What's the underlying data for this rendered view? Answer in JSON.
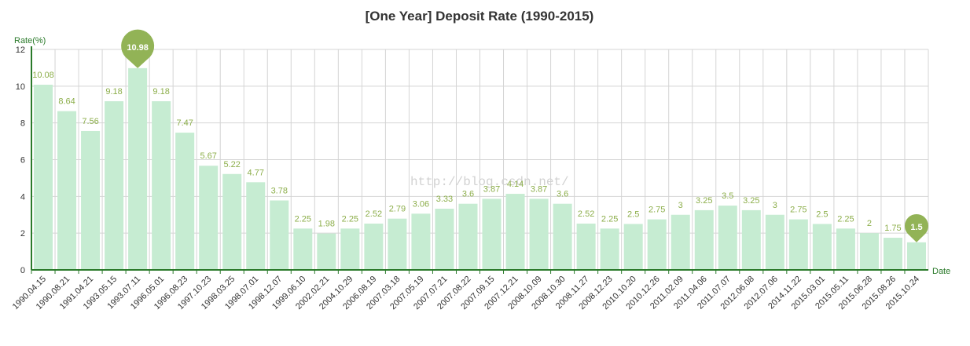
{
  "chart_data": {
    "type": "bar",
    "title": "[One Year] Deposit Rate (1990-2015)",
    "ylabel": "Rate(%)",
    "xlabel": "Date",
    "ylim": [
      0,
      12
    ],
    "yticks": [
      0,
      2,
      4,
      6,
      8,
      10,
      12
    ],
    "grid": true,
    "categories": [
      "1990.04.15",
      "1990.08.21",
      "1991.04.21",
      "1993.05.15",
      "1993.07.11",
      "1996.05.01",
      "1996.08.23",
      "1997.10.23",
      "1998.03.25",
      "1998.07.01",
      "1998.12.07",
      "1999.06.10",
      "2002.02.21",
      "2004.10.29",
      "2006.08.19",
      "2007.03.18",
      "2007.05.19",
      "2007.07.21",
      "2007.08.22",
      "2007.09.15",
      "2007.12.21",
      "2008.10.09",
      "2008.10.30",
      "2008.11.27",
      "2008.12.23",
      "2010.10.20",
      "2010.12.26",
      "2011.02.09",
      "2011.04.06",
      "2011.07.07",
      "2012.06.08",
      "2012.07.06",
      "2014.11.22",
      "2015.03.01",
      "2015.05.11",
      "2015.06.28",
      "2015.08.26",
      "2015.10.24"
    ],
    "values": [
      10.08,
      8.64,
      7.56,
      9.18,
      10.98,
      9.18,
      7.47,
      5.67,
      5.22,
      4.77,
      3.78,
      2.25,
      1.98,
      2.25,
      2.52,
      2.79,
      3.06,
      3.33,
      3.6,
      3.87,
      4.14,
      3.87,
      3.6,
      2.52,
      2.25,
      2.5,
      2.75,
      3,
      3.25,
      3.5,
      3.25,
      3,
      2.75,
      2.5,
      2.25,
      2,
      1.75,
      1.5
    ],
    "highlight_max": 10.98,
    "highlight_min": 1.5,
    "watermark": "http://blog.csdn.net/",
    "colors": {
      "bar": "#c6ecd2",
      "label": "#8cae4a",
      "pin": "#92b356",
      "axis": "#2a7a2a",
      "grid": "#d4d4d4"
    }
  }
}
